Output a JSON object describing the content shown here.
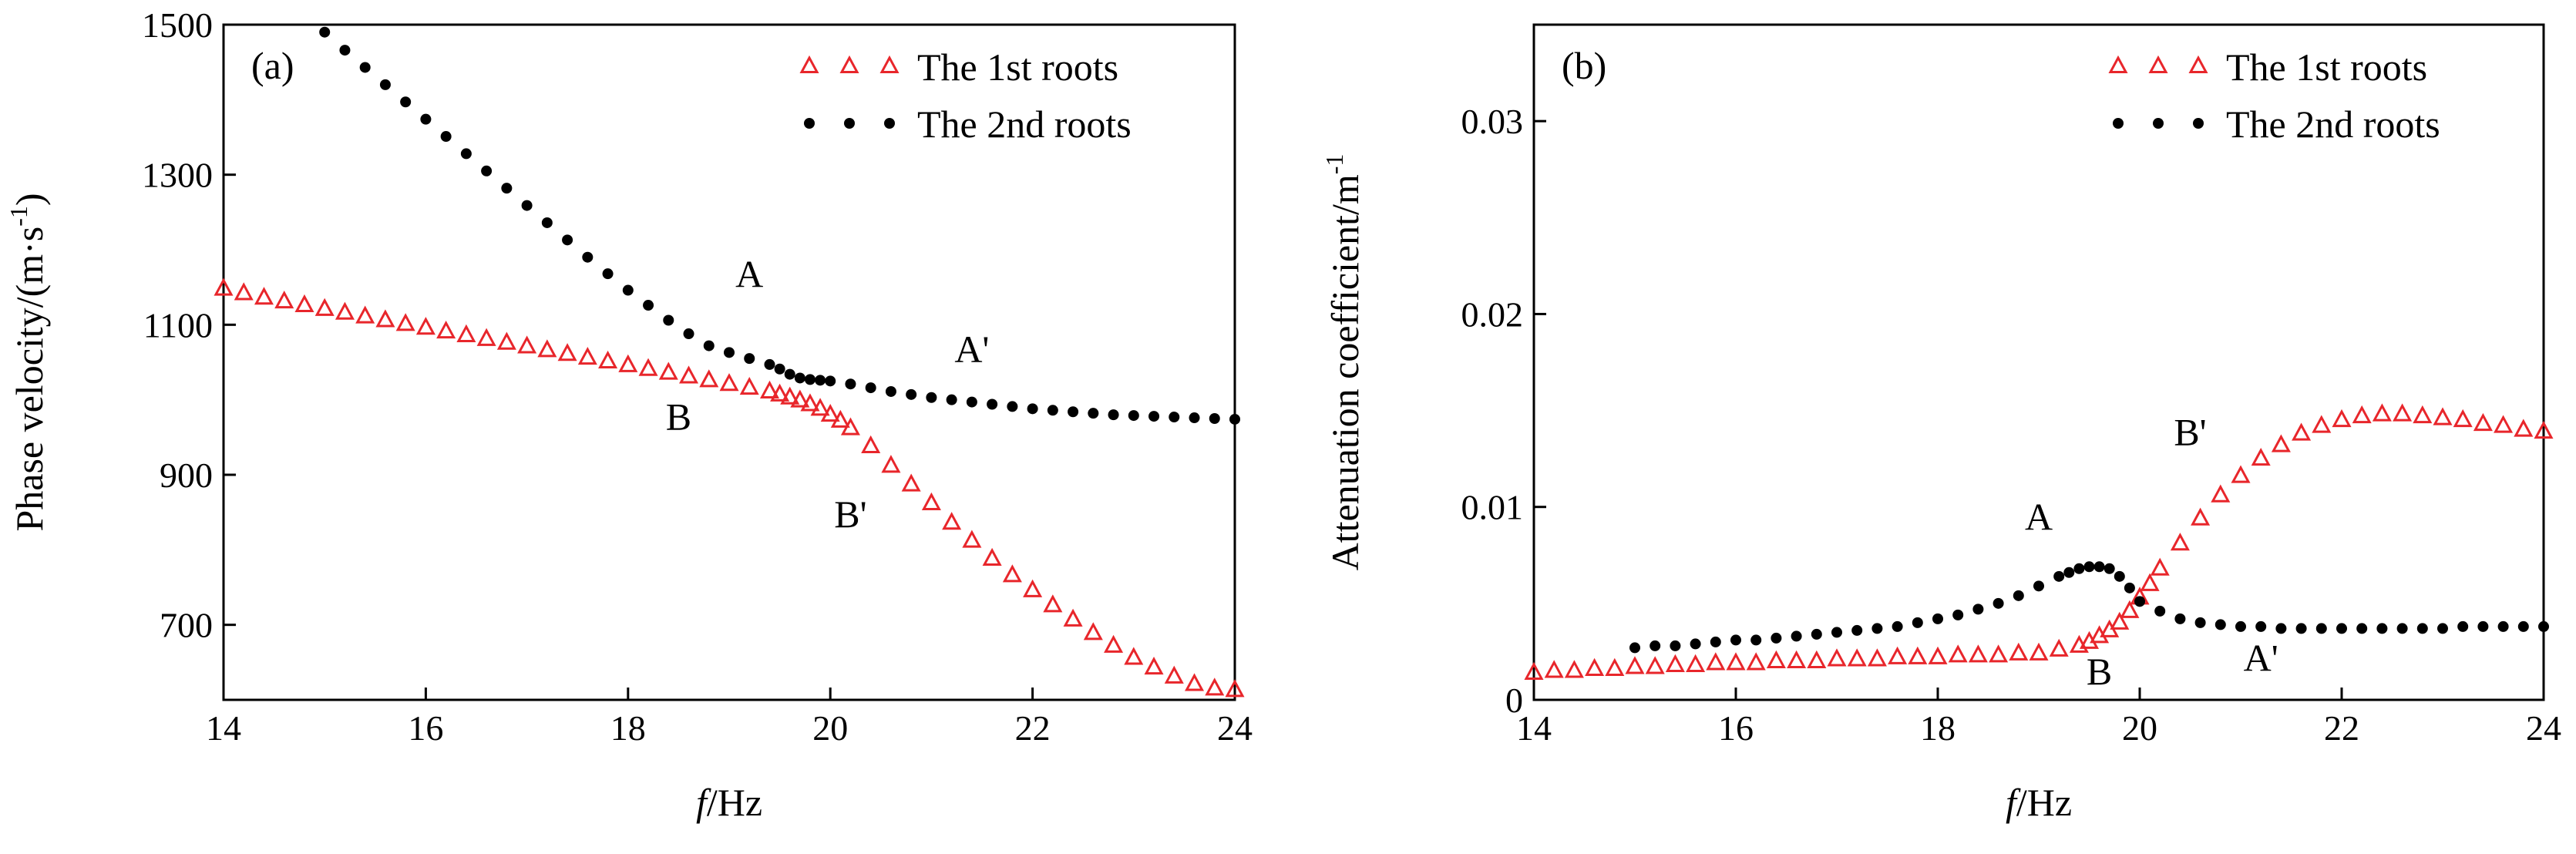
{
  "chart_data": [
    {
      "type": "scatter",
      "panel_label": "(a)",
      "xlabel_italic": "f",
      "xlabel_rest": "/Hz",
      "ylabel_main": "Phase velocity/(m·s",
      "ylabel_sup": "-1",
      "ylabel_close": ")",
      "xlim": [
        14,
        24
      ],
      "ylim": [
        600,
        1500
      ],
      "xticks": [
        "14",
        "16",
        "18",
        "20",
        "22",
        "24"
      ],
      "yticks": [
        "700",
        "900",
        "1100",
        "1300",
        "1500"
      ],
      "legend_position": "top-right",
      "series": [
        {
          "name": "The 1st roots",
          "marker": "triangle-open",
          "color": "#e8262b",
          "x": [
            14.0,
            14.2,
            14.4,
            14.6,
            14.8,
            15.0,
            15.2,
            15.4,
            15.6,
            15.8,
            16.0,
            16.2,
            16.4,
            16.6,
            16.8,
            17.0,
            17.2,
            17.4,
            17.6,
            17.8,
            18.0,
            18.2,
            18.4,
            18.6,
            18.8,
            19.0,
            19.2,
            19.4,
            19.5,
            19.6,
            19.7,
            19.8,
            19.9,
            20.0,
            20.1,
            20.2,
            20.4,
            20.6,
            20.8,
            21.0,
            21.2,
            21.4,
            21.6,
            21.8,
            22.0,
            22.2,
            22.4,
            22.6,
            22.8,
            23.0,
            23.2,
            23.4,
            23.6,
            23.8,
            24.0
          ],
          "y": [
            1148,
            1142,
            1136,
            1131,
            1126,
            1121,
            1116,
            1111,
            1106,
            1101,
            1096,
            1091,
            1086,
            1081,
            1076,
            1071,
            1066,
            1061,
            1056,
            1051,
            1046,
            1041,
            1036,
            1031,
            1026,
            1021,
            1016,
            1011,
            1007,
            1003,
            999,
            994,
            988,
            980,
            972,
            962,
            938,
            912,
            887,
            862,
            836,
            812,
            788,
            766,
            746,
            726,
            707,
            689,
            672,
            656,
            643,
            631,
            621,
            615,
            613
          ]
        },
        {
          "name": "The 2nd roots",
          "marker": "dot",
          "color": "#000000",
          "x": [
            15.0,
            15.2,
            15.4,
            15.6,
            15.8,
            16.0,
            16.2,
            16.4,
            16.6,
            16.8,
            17.0,
            17.2,
            17.4,
            17.6,
            17.8,
            18.0,
            18.2,
            18.4,
            18.6,
            18.8,
            19.0,
            19.2,
            19.4,
            19.5,
            19.6,
            19.7,
            19.8,
            19.9,
            20.0,
            20.2,
            20.4,
            20.6,
            20.8,
            21.0,
            21.2,
            21.4,
            21.6,
            21.8,
            22.0,
            22.2,
            22.4,
            22.6,
            22.8,
            23.0,
            23.2,
            23.4,
            23.6,
            23.8,
            24.0
          ],
          "y": [
            1490,
            1466,
            1443,
            1420,
            1397,
            1374,
            1351,
            1328,
            1305,
            1282,
            1259,
            1236,
            1213,
            1190,
            1168,
            1146,
            1126,
            1106,
            1088,
            1072,
            1063,
            1055,
            1047,
            1041,
            1034,
            1029,
            1027,
            1026,
            1025,
            1021,
            1016,
            1011,
            1007,
            1003,
            1000,
            997,
            994,
            991,
            988,
            986,
            984,
            982,
            980,
            979,
            978,
            977,
            976,
            975,
            974
          ]
        }
      ],
      "annotations": [
        {
          "text": "A",
          "x": 19.2,
          "y": 1150
        },
        {
          "text": "A'",
          "x": 21.4,
          "y": 1050
        },
        {
          "text": "B",
          "x": 18.5,
          "y": 960
        },
        {
          "text": "B'",
          "x": 20.2,
          "y": 830
        }
      ]
    },
    {
      "type": "scatter",
      "panel_label": "(b)",
      "xlabel_italic": "f",
      "xlabel_rest": "/Hz",
      "ylabel_main": "Attenuation coefficient/m",
      "ylabel_sup": "-1",
      "ylabel_close": "",
      "xlim": [
        14,
        24
      ],
      "ylim": [
        0,
        0.035
      ],
      "xticks": [
        "14",
        "16",
        "18",
        "20",
        "22",
        "24"
      ],
      "yticks": [
        "0",
        "0.01",
        "0.02",
        "0.03"
      ],
      "legend_position": "top-right",
      "series": [
        {
          "name": "The 1st roots",
          "marker": "triangle-open",
          "color": "#e8262b",
          "x": [
            14.0,
            14.2,
            14.4,
            14.6,
            14.8,
            15.0,
            15.2,
            15.4,
            15.6,
            15.8,
            16.0,
            16.2,
            16.4,
            16.6,
            16.8,
            17.0,
            17.2,
            17.4,
            17.6,
            17.8,
            18.0,
            18.2,
            18.4,
            18.6,
            18.8,
            19.0,
            19.2,
            19.4,
            19.5,
            19.6,
            19.7,
            19.8,
            19.9,
            20.0,
            20.1,
            20.2,
            20.4,
            20.6,
            20.8,
            21.0,
            21.2,
            21.4,
            21.6,
            21.8,
            22.0,
            22.2,
            22.4,
            22.6,
            22.8,
            23.0,
            23.2,
            23.4,
            23.6,
            23.8,
            24.0
          ],
          "y": [
            0.0014,
            0.0015,
            0.0015,
            0.0016,
            0.0016,
            0.0017,
            0.0017,
            0.0018,
            0.0018,
            0.0019,
            0.0019,
            0.0019,
            0.002,
            0.002,
            0.002,
            0.0021,
            0.0021,
            0.0021,
            0.0022,
            0.0022,
            0.0022,
            0.0023,
            0.0023,
            0.0023,
            0.0024,
            0.0024,
            0.0026,
            0.0028,
            0.003,
            0.0033,
            0.0036,
            0.004,
            0.0046,
            0.0053,
            0.006,
            0.0068,
            0.0081,
            0.0094,
            0.0106,
            0.0116,
            0.0125,
            0.0132,
            0.0138,
            0.0142,
            0.0145,
            0.0147,
            0.0148,
            0.0148,
            0.0147,
            0.0146,
            0.0145,
            0.0143,
            0.0142,
            0.014,
            0.0139
          ]
        },
        {
          "name": "The 2nd roots",
          "marker": "dot",
          "color": "#000000",
          "x": [
            15.0,
            15.2,
            15.4,
            15.6,
            15.8,
            16.0,
            16.2,
            16.4,
            16.6,
            16.8,
            17.0,
            17.2,
            17.4,
            17.6,
            17.8,
            18.0,
            18.2,
            18.4,
            18.6,
            18.8,
            19.0,
            19.2,
            19.3,
            19.4,
            19.5,
            19.6,
            19.7,
            19.8,
            19.9,
            20.0,
            20.2,
            20.4,
            20.6,
            20.8,
            21.0,
            21.2,
            21.4,
            21.6,
            21.8,
            22.0,
            22.2,
            22.4,
            22.6,
            22.8,
            23.0,
            23.2,
            23.4,
            23.6,
            23.8,
            24.0
          ],
          "y": [
            0.0027,
            0.0028,
            0.0028,
            0.0029,
            0.003,
            0.0031,
            0.0031,
            0.0032,
            0.0033,
            0.0034,
            0.0035,
            0.0036,
            0.0037,
            0.0038,
            0.004,
            0.0042,
            0.0044,
            0.0047,
            0.005,
            0.0054,
            0.0059,
            0.0064,
            0.0066,
            0.0068,
            0.0069,
            0.0069,
            0.0068,
            0.0064,
            0.0058,
            0.0051,
            0.0046,
            0.0042,
            0.004,
            0.0039,
            0.0038,
            0.0038,
            0.0037,
            0.0037,
            0.0037,
            0.0037,
            0.0037,
            0.0037,
            0.0037,
            0.0037,
            0.0037,
            0.0038,
            0.0038,
            0.0038,
            0.0038,
            0.0038
          ]
        }
      ],
      "annotations": [
        {
          "text": "A",
          "x": 19.0,
          "y": 0.0088
        },
        {
          "text": "A'",
          "x": 21.2,
          "y": 0.0015
        },
        {
          "text": "B",
          "x": 19.6,
          "y": 0.0008
        },
        {
          "text": "B'",
          "x": 20.5,
          "y": 0.0132
        }
      ]
    }
  ]
}
